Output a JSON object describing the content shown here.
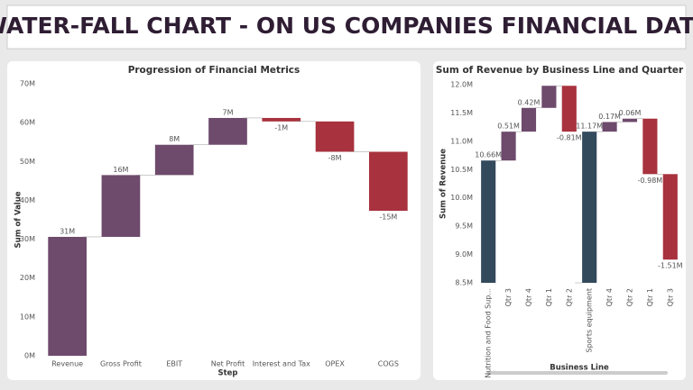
{
  "header": {
    "title": "WATER-FALL CHART - ON US COMPANIES FINANCIAL DATA"
  },
  "chart_data": [
    {
      "type": "waterfall",
      "title": "Progression of Financial Metrics",
      "x_label": "Step",
      "y_label": "Sum of Value",
      "categories": [
        "Revenue",
        "Gross Profit",
        "EBIT",
        "Net Profit",
        "Interest and Tax",
        "OPEX",
        "COGS"
      ],
      "values": [
        30.6,
        15.9,
        7.8,
        6.9,
        -0.9,
        -7.8,
        -15.2
      ],
      "value_labels": [
        "31M",
        "16M",
        "8M",
        "7M",
        "-1M",
        "-8M",
        "-15M"
      ],
      "increase_color": "#6e4a6c",
      "decrease_color": "#a8323e",
      "ylim": [
        0,
        70
      ],
      "yticks": [
        {
          "value": 0,
          "label": "0M"
        },
        {
          "value": 10,
          "label": "10M"
        },
        {
          "value": 20,
          "label": "20M"
        },
        {
          "value": 30,
          "label": "30M"
        },
        {
          "value": 40,
          "label": "40M"
        },
        {
          "value": 50,
          "label": "50M"
        },
        {
          "value": 60,
          "label": "60M"
        },
        {
          "value": 70,
          "label": "70M"
        }
      ]
    },
    {
      "type": "waterfall",
      "title": "Sum of Revenue by Business Line and Quarter",
      "x_label": "Business Line",
      "y_label": "Sum of Revenue",
      "categories": [
        "Nutrition and Food Sup...",
        "Qtr 3",
        "Qtr 4",
        "Qtr 1",
        "Qtr 2",
        "Sports equipment",
        "Qtr 4",
        "Qtr 2",
        "Qtr 1",
        "Qtr 3"
      ],
      "values": [
        10.66,
        0.51,
        0.42,
        0.39,
        -0.81,
        11.17,
        0.17,
        0.06,
        -0.98,
        -1.51
      ],
      "value_labels": [
        "10.66M",
        "0.51M",
        "0.42M",
        null,
        "-0.81M",
        "11.17M",
        "0.17M",
        "0.06M",
        "-0.98M",
        "-1.51M"
      ],
      "is_total": [
        true,
        false,
        false,
        false,
        false,
        true,
        false,
        false,
        false,
        false
      ],
      "increase_color": "#6e4a6c",
      "decrease_color": "#a8323e",
      "total_color": "#33495c",
      "ylim": [
        8.5,
        12.0
      ],
      "yticks": [
        {
          "value": 8.5,
          "label": "8.5M"
        },
        {
          "value": 9.0,
          "label": "9.0M"
        },
        {
          "value": 9.5,
          "label": "9.5M"
        },
        {
          "value": 10.0,
          "label": "10.0M"
        },
        {
          "value": 10.5,
          "label": "10.5M"
        },
        {
          "value": 11.0,
          "label": "11.0M"
        },
        {
          "value": 11.5,
          "label": "11.5M"
        },
        {
          "value": 12.0,
          "label": "12.0M"
        }
      ]
    }
  ]
}
